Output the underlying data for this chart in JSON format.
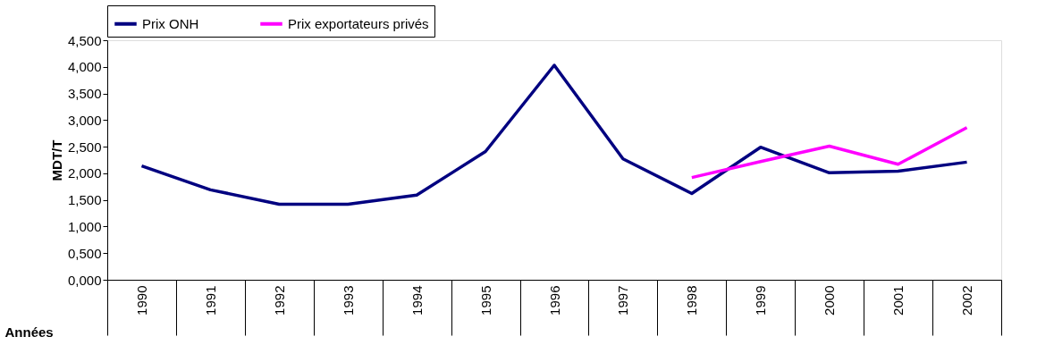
{
  "chart_data": {
    "type": "line",
    "xlabel": "Années",
    "ylabel": "MDT/T",
    "categories": [
      "1990",
      "1991",
      "1992",
      "1993",
      "1994",
      "1995",
      "1996",
      "1997",
      "1998",
      "1999",
      "2000",
      "2001",
      "2002"
    ],
    "series": [
      {
        "name": "Prix ONH",
        "color": "#000080",
        "values": [
          2.14,
          1.69,
          1.42,
          1.42,
          1.59,
          2.41,
          4.03,
          2.27,
          1.62,
          2.49,
          2.01,
          2.04,
          2.21
        ]
      },
      {
        "name": "Prix exportateurs privés",
        "color": "#ff00ff",
        "values": [
          null,
          null,
          null,
          null,
          null,
          null,
          null,
          null,
          1.92,
          2.22,
          2.51,
          2.17,
          2.86
        ]
      }
    ],
    "ylim": [
      0,
      4.5
    ],
    "yticks": [
      {
        "value": 0,
        "label": "0,000"
      },
      {
        "value": 0.5,
        "label": "0,500"
      },
      {
        "value": 1,
        "label": "1,000"
      },
      {
        "value": 1.5,
        "label": "1,500"
      },
      {
        "value": 2,
        "label": "2,000"
      },
      {
        "value": 2.5,
        "label": "2,500"
      },
      {
        "value": 3,
        "label": "3,000"
      },
      {
        "value": 3.5,
        "label": "3,500"
      },
      {
        "value": 4,
        "label": "4,000"
      },
      {
        "value": 4.5,
        "label": "4,500"
      }
    ],
    "legend": "top",
    "grid": false,
    "marker": "none",
    "line_style": "solid"
  }
}
